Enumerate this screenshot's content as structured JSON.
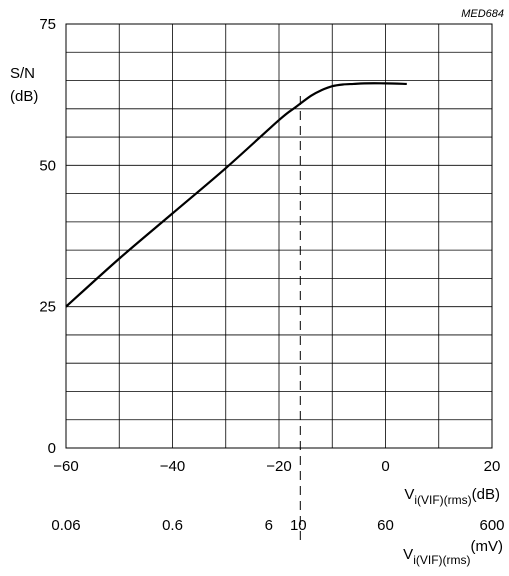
{
  "chart_data": {
    "type": "line",
    "figure_code": "MED684",
    "ylabel_line1": "S/N",
    "ylabel_line2": "(dB)",
    "xlabel_db_main": "V",
    "xlabel_db_sub": "i(VIF)(rms)",
    "xlabel_db_unit": "(dB)",
    "xlabel_mv_main": "V",
    "xlabel_mv_sub": "i(VIF)(rms)",
    "xlabel_mv_unit": "(mV)",
    "xlim": [
      -60,
      20
    ],
    "ylim": [
      0,
      75
    ],
    "grid": true,
    "x_ticks": [
      {
        "v": -60,
        "label": "−60"
      },
      {
        "v": -40,
        "label": "−40"
      },
      {
        "v": -20,
        "label": "−20"
      },
      {
        "v": 0,
        "label": "0"
      },
      {
        "v": 20,
        "label": "20"
      }
    ],
    "y_ticks": [
      {
        "v": 0,
        "label": "0"
      },
      {
        "v": 25,
        "label": "25"
      },
      {
        "v": 50,
        "label": "50"
      },
      {
        "v": 75,
        "label": "75"
      }
    ],
    "secondary_x_ticks": [
      {
        "v": -60,
        "label": "0.06"
      },
      {
        "v": -40,
        "label": "0.6"
      },
      {
        "v": -20,
        "label": "6"
      },
      {
        "v": -16,
        "label": "10"
      },
      {
        "v": 0,
        "label": "60"
      },
      {
        "v": 20,
        "label": "600"
      }
    ],
    "reference_x": -16,
    "series": [
      {
        "points": [
          [
            -60,
            25
          ],
          [
            -50,
            33.5
          ],
          [
            -40,
            41.5
          ],
          [
            -30,
            49.5
          ],
          [
            -20,
            58
          ],
          [
            -17,
            60.2
          ],
          [
            -14,
            62.3
          ],
          [
            -12,
            63.3
          ],
          [
            -10,
            64
          ],
          [
            -8,
            64.3
          ],
          [
            -6,
            64.4
          ],
          [
            -4,
            64.5
          ],
          [
            0,
            64.5
          ],
          [
            4,
            64.4
          ]
        ]
      }
    ]
  }
}
